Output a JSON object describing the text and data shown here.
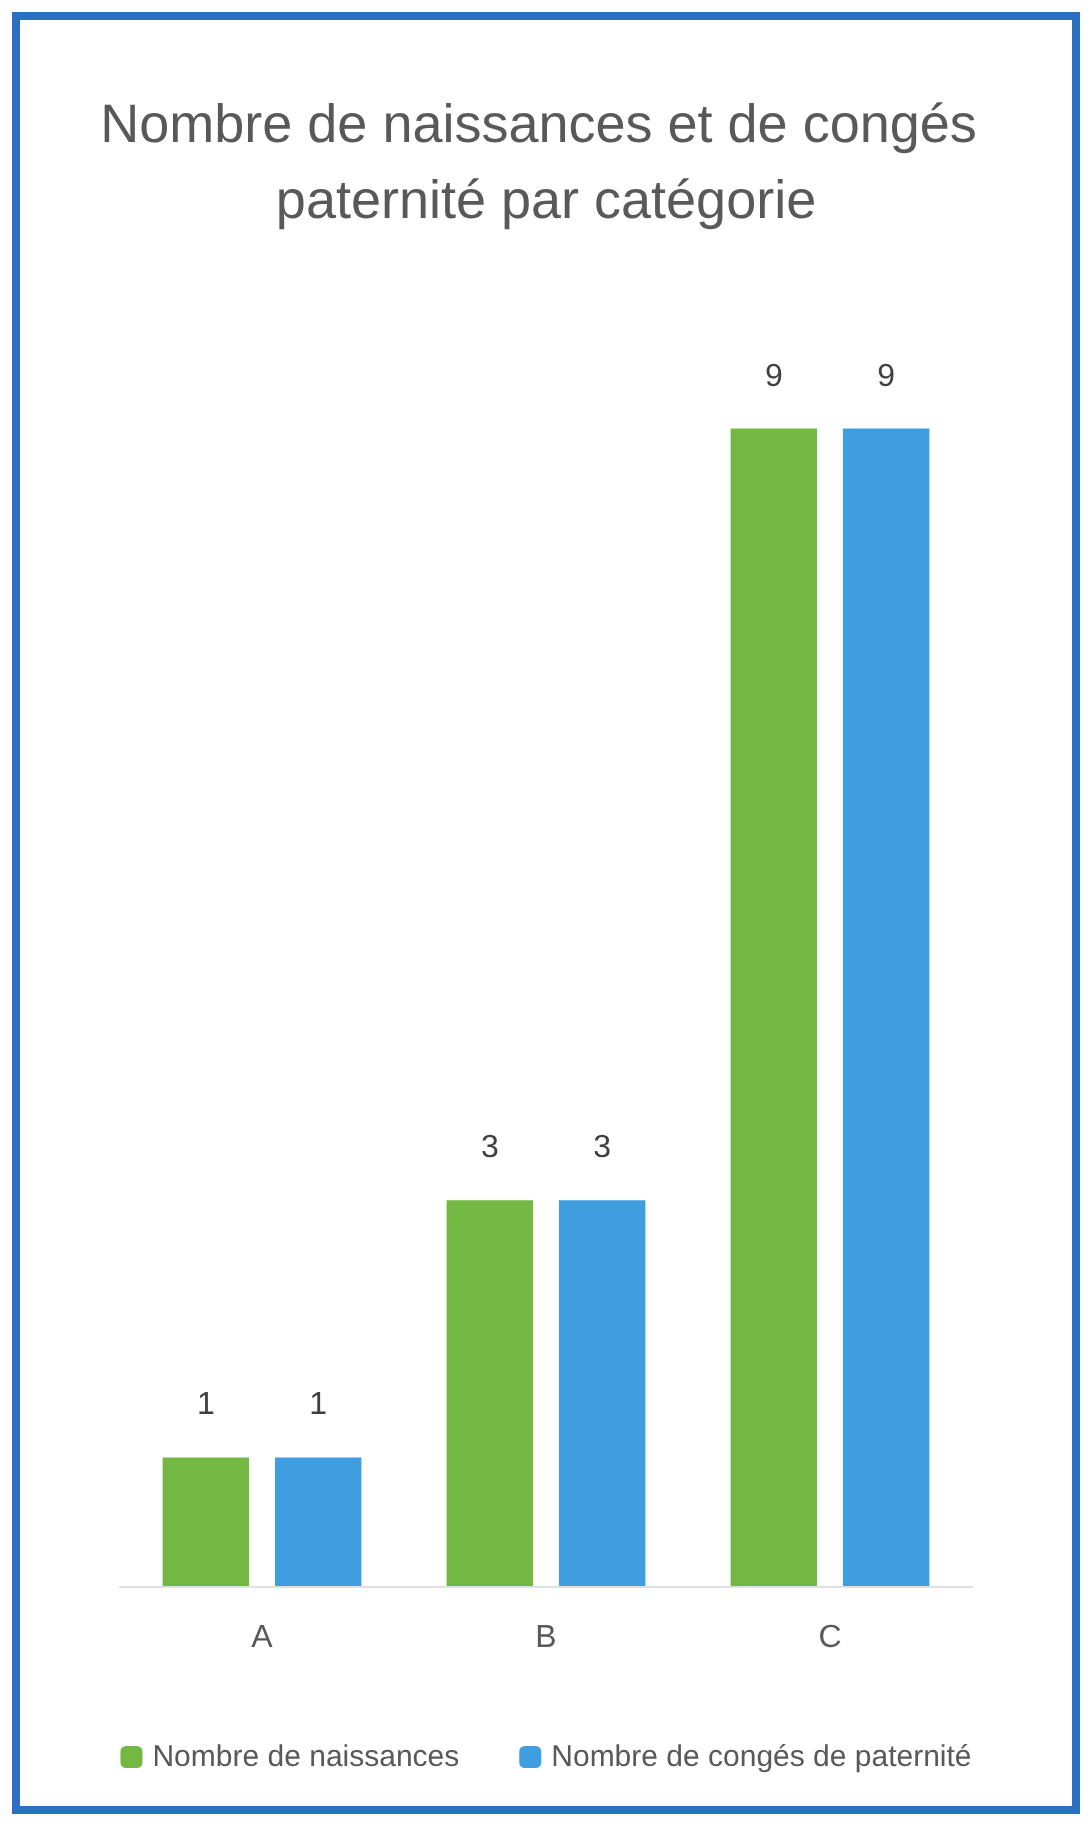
{
  "chart_data": {
    "type": "bar",
    "title": "Nombre de naissances et de congés paternité par catégorie",
    "categories": [
      "A",
      "B",
      "C"
    ],
    "series": [
      {
        "name": "Nombre de naissances",
        "color": "#72b843",
        "values": [
          1,
          3,
          9
        ]
      },
      {
        "name": "Nombre de congés de paternité",
        "color": "#3e9ee0",
        "values": [
          1,
          3,
          9
        ]
      }
    ],
    "data_labels": true,
    "legend": "bottom",
    "grid": false
  }
}
